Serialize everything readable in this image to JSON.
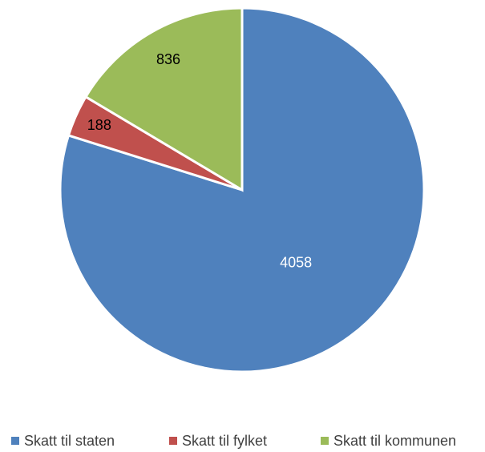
{
  "chart_data": {
    "type": "pie",
    "categories": [
      "Skatt til staten",
      "Skatt til fylket",
      "Skatt til kommunen"
    ],
    "values": [
      4058,
      188,
      836
    ],
    "colors": [
      "#4f81bd",
      "#c0504d",
      "#9bbb59"
    ],
    "label_colors": [
      "#ffffff",
      "#000000",
      "#000000"
    ],
    "legend": "bottom"
  }
}
